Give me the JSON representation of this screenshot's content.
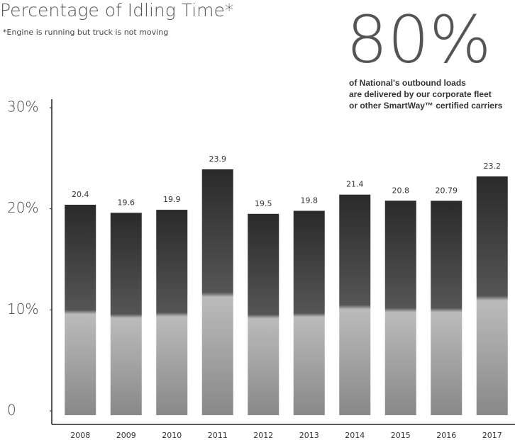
{
  "chart_data": {
    "type": "bar",
    "title": "Percentage of Idling Time*",
    "subtitle": "*Engine is running but truck is not moving",
    "annotation": {
      "headline": "80%",
      "lines": [
        "of National's outbound loads",
        "are delivered by our corporate fleet",
        "or other SmartWay™ certified carriers"
      ]
    },
    "categories": [
      "2008",
      "2009",
      "2010",
      "2011",
      "2012",
      "2013",
      "2014",
      "2015",
      "2016",
      "2017"
    ],
    "values": [
      20.4,
      19.6,
      19.9,
      23.9,
      19.5,
      19.8,
      21.4,
      20.8,
      20.79,
      23.2
    ],
    "color": "#2a2a2a",
    "ylim": [
      0,
      30
    ],
    "yticks": [
      0,
      {
        "value": 10,
        "label": "10%"
      },
      {
        "value": 20,
        "label": "20%"
      },
      {
        "value": 30,
        "label": "30%"
      }
    ],
    "grid": false
  }
}
